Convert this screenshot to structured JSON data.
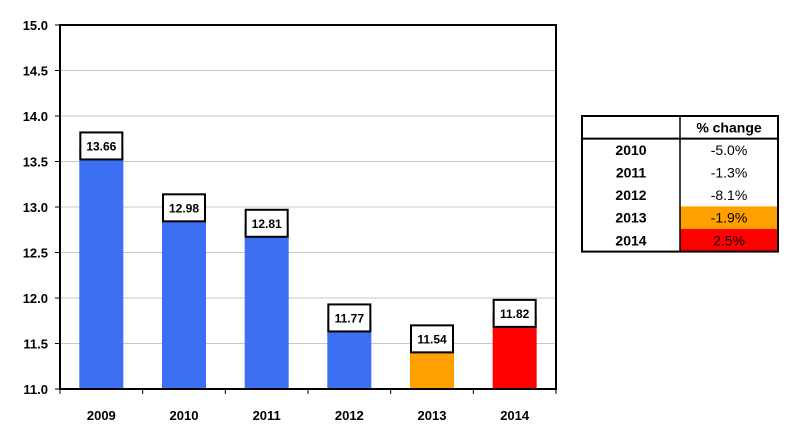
{
  "chart_data": {
    "type": "bar",
    "categories": [
      "2009",
      "2010",
      "2011",
      "2012",
      "2013",
      "2014"
    ],
    "values": [
      13.66,
      12.98,
      12.81,
      11.77,
      11.54,
      11.82
    ],
    "data_labels": [
      "13.66",
      "12.98",
      "12.81",
      "11.77",
      "11.54",
      "11.82"
    ],
    "bar_colors": [
      "#3d6ff2",
      "#3d6ff2",
      "#3d6ff2",
      "#3d6ff2",
      "#ff9f00",
      "#ff0000"
    ],
    "ylim": [
      11.0,
      15.0
    ],
    "yticks": [
      11.0,
      11.5,
      12.0,
      12.5,
      13.0,
      13.5,
      14.0,
      14.5,
      15.0
    ],
    "ytick_labels": [
      "11.0",
      "11.5",
      "12.0",
      "12.5",
      "13.0",
      "13.5",
      "14.0",
      "14.5",
      "15.0"
    ],
    "title": "",
    "xlabel": "",
    "ylabel": "",
    "grid": true,
    "legend": "none"
  },
  "change_table": {
    "header": "% change",
    "rows": [
      {
        "year": "2010",
        "value": "-5.0%",
        "fill": "#ffffff"
      },
      {
        "year": "2011",
        "value": "-1.3%",
        "fill": "#ffffff"
      },
      {
        "year": "2012",
        "value": "-8.1%",
        "fill": "#ffffff"
      },
      {
        "year": "2013",
        "value": "-1.9%",
        "fill": "#ff9f00"
      },
      {
        "year": "2014",
        "value": "2.5%",
        "fill": "#ff0000"
      }
    ]
  }
}
